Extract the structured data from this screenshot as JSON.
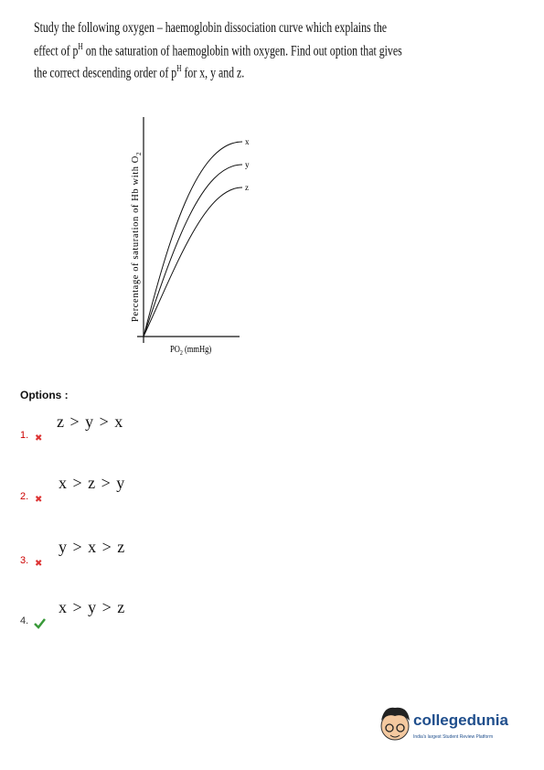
{
  "question": {
    "lines": [
      [
        "Study the following oxygen – haemoglobin dissociation curve which explains the"
      ],
      [
        "effect of p",
        "H",
        " on the saturation of haemoglobin with oxygen. Find out option that gives"
      ],
      [
        "the correct descending order of p",
        "H",
        " for x, y and z."
      ]
    ]
  },
  "diagram": {
    "y_label": [
      "Percentage of saturation of Hb with O",
      "2"
    ],
    "x_label": [
      "PO",
      "2",
      " (mmHg)"
    ],
    "curves": [
      "x",
      "y",
      "z"
    ]
  },
  "options_heading": "Options :",
  "options": [
    {
      "number": "1.",
      "text": "z > y > x"
    },
    {
      "number": "2.",
      "text": "x > z > y"
    },
    {
      "number": "3.",
      "text": "y > x > z"
    },
    {
      "number": "4.",
      "text": "x > y > z"
    }
  ],
  "logo": {
    "name": "collegedunia",
    "tagline": "India's largest Student Review Platform"
  }
}
